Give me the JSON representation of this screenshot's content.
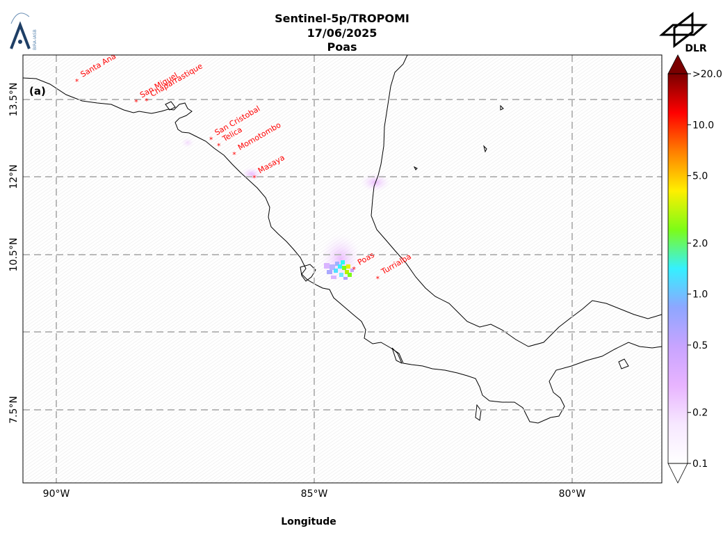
{
  "header": {
    "instrument": "Sentinel-5p/TROPOMI",
    "date": "17/06/2025",
    "volcano": "Poas"
  },
  "logos": {
    "left": "BIRA-IASB",
    "right": "DLR"
  },
  "panel_label": "(a)",
  "axes": {
    "xlabel": "Longitude",
    "x_ticks": [
      "90°W",
      "85°W",
      "80°W"
    ],
    "y_ticks": [
      "13.5°N",
      "12°N",
      "10.5°N",
      "7.5°N"
    ]
  },
  "colorbar": {
    "scale": "log",
    "range": [
      0.1,
      20.0
    ],
    "ticks": [
      ">20.0",
      "10.0",
      "5.0",
      "2.0",
      "1.0",
      "0.5",
      "0.2",
      "0.1"
    ],
    "colors": [
      "#ffffff",
      "#f7e8ff",
      "#e8b4ff",
      "#c8a4ff",
      "#8ea6ff",
      "#35f0ff",
      "#7dfc17",
      "#ffef00",
      "#ff7f00",
      "#ff0000",
      "#7a0000"
    ]
  },
  "volcanoes": [
    {
      "name": "Santa Ana",
      "lon": -89.6,
      "lat": 13.85
    },
    {
      "name": "San Miguel",
      "lon": -88.45,
      "lat": 13.45
    },
    {
      "name": "Chaparrastique",
      "lon": -88.25,
      "lat": 13.47
    },
    {
      "name": "San Cristobal",
      "lon": -87.0,
      "lat": 12.72
    },
    {
      "name": "Telica",
      "lon": -86.85,
      "lat": 12.6
    },
    {
      "name": "Momotombo",
      "lon": -86.55,
      "lat": 12.43
    },
    {
      "name": "Masaya",
      "lon": -86.16,
      "lat": 11.98
    },
    {
      "name": "Poas",
      "lon": -84.23,
      "lat": 10.2
    },
    {
      "name": "Turrialba",
      "lon": -83.77,
      "lat": 10.02
    }
  ]
}
